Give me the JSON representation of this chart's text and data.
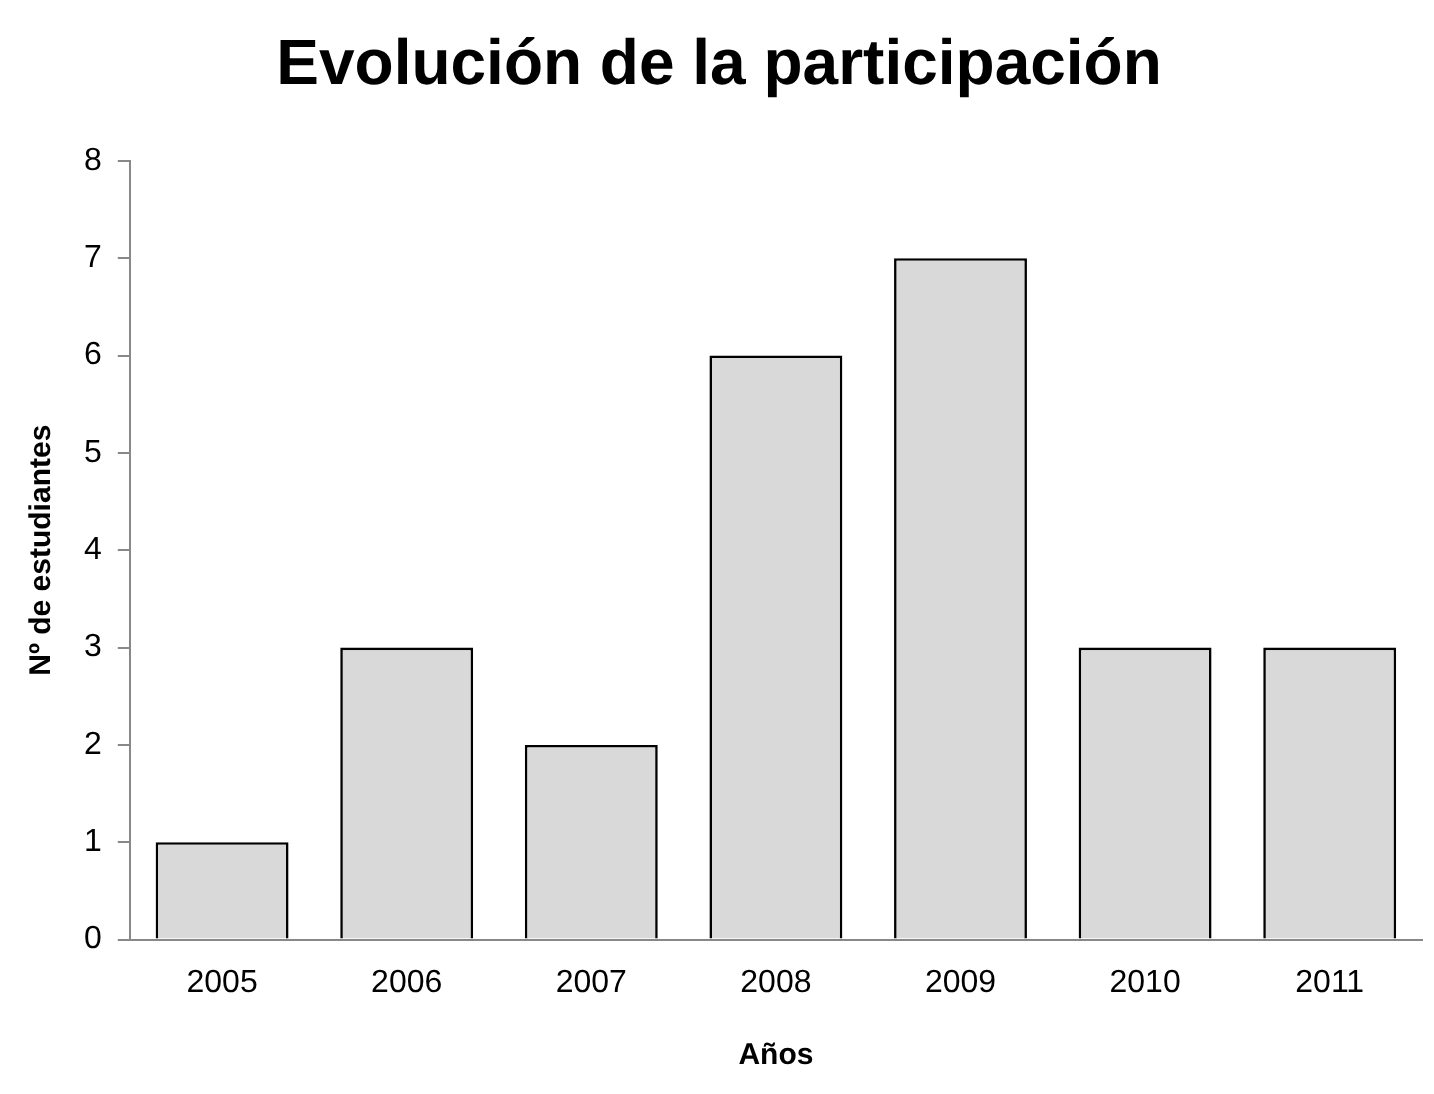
{
  "chart_data": {
    "type": "bar",
    "title": "Evolución de la participación",
    "xlabel": "Años",
    "ylabel": "Nº de estudiantes",
    "categories": [
      "2005",
      "2006",
      "2007",
      "2008",
      "2009",
      "2010",
      "2011"
    ],
    "values": [
      1,
      3,
      2,
      6,
      7,
      3,
      3
    ],
    "color": "#d9d9d9",
    "ylim": [
      0,
      8
    ],
    "yticks": [
      0,
      1,
      2,
      3,
      4,
      5,
      6,
      7,
      8
    ],
    "grid": false,
    "legend": false
  }
}
